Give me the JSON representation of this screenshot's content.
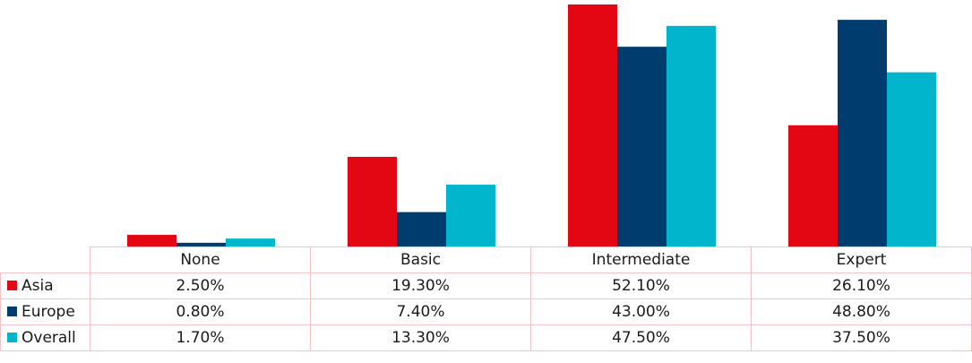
{
  "chart_data": {
    "type": "bar",
    "categories": [
      "None",
      "Basic",
      "Intermediate",
      "Expert"
    ],
    "series": [
      {
        "name": "Asia",
        "color": "#e30613",
        "values": [
          2.5,
          19.3,
          52.1,
          26.1
        ],
        "labels": [
          "2.50%",
          "19.30%",
          "52.10%",
          "26.10%"
        ]
      },
      {
        "name": "Europe",
        "color": "#003d6e",
        "values": [
          0.8,
          7.4,
          43.0,
          48.8
        ],
        "labels": [
          "0.80%",
          "7.40%",
          "43.00%",
          "48.80%"
        ]
      },
      {
        "name": "Overall",
        "color": "#00b5cc",
        "values": [
          1.7,
          13.3,
          47.5,
          37.5
        ],
        "labels": [
          "1.70%",
          "13.30%",
          "47.50%",
          "37.50%"
        ]
      }
    ],
    "ylim": [
      0,
      52.1
    ],
    "grid": false,
    "legend": "data-table-left"
  }
}
